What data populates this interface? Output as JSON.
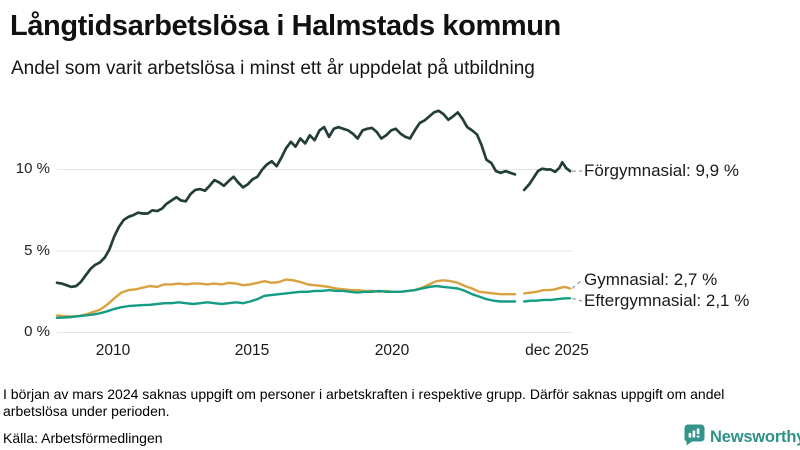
{
  "header": {
    "title": "Långtidsarbetslösa i Halmstads kommun",
    "subtitle": "Andel som varit arbetslösa i minst ett år uppdelat på utbildning"
  },
  "chart_data": {
    "type": "line",
    "title": "Långtidsarbetslösa i Halmstads kommun",
    "subtitle": "Andel som varit arbetslösa i minst ett år uppdelat på utbildning",
    "unit": "%",
    "grid": true,
    "x_domain": [
      2008.0,
      2025.92
    ],
    "x_ticks": [
      {
        "label": "2010",
        "year": 2010
      },
      {
        "label": "2015",
        "year": 2015
      },
      {
        "label": "2020",
        "year": 2020
      },
      {
        "label": "dec 2025",
        "year": 2025.92
      }
    ],
    "y_ticks": [
      {
        "label": "0 %",
        "value": 0
      },
      {
        "label": "5 %",
        "value": 5
      },
      {
        "label": "10 %",
        "value": 10
      }
    ],
    "y_max": 14.3,
    "data_gap": {
      "from": 2024.0,
      "to": 2024.32,
      "reason": "saknas uppgift (mars 2024)"
    },
    "series": [
      {
        "name": "Förgymnasial",
        "end_value": "9,9 %",
        "end_label": "Förgymnasial: 9,9 %",
        "color": "#233e39",
        "segments": [
          [
            [
              2008.0,
              3.05
            ],
            [
              2008.17,
              3.0
            ],
            [
              2008.33,
              2.9
            ],
            [
              2008.5,
              2.8
            ],
            [
              2008.67,
              2.85
            ],
            [
              2008.83,
              3.1
            ],
            [
              2009.0,
              3.5
            ],
            [
              2009.17,
              3.9
            ],
            [
              2009.33,
              4.15
            ],
            [
              2009.5,
              4.3
            ],
            [
              2009.67,
              4.6
            ],
            [
              2009.83,
              5.1
            ],
            [
              2010.0,
              5.9
            ],
            [
              2010.17,
              6.5
            ],
            [
              2010.33,
              6.9
            ],
            [
              2010.5,
              7.1
            ],
            [
              2010.67,
              7.2
            ],
            [
              2010.83,
              7.35
            ],
            [
              2011.0,
              7.3
            ],
            [
              2011.17,
              7.3
            ],
            [
              2011.33,
              7.5
            ],
            [
              2011.5,
              7.45
            ],
            [
              2011.67,
              7.6
            ],
            [
              2011.83,
              7.9
            ],
            [
              2012.0,
              8.1
            ],
            [
              2012.17,
              8.3
            ],
            [
              2012.33,
              8.1
            ],
            [
              2012.5,
              8.05
            ],
            [
              2012.67,
              8.5
            ],
            [
              2012.83,
              8.75
            ],
            [
              2013.0,
              8.8
            ],
            [
              2013.17,
              8.7
            ],
            [
              2013.33,
              9.0
            ],
            [
              2013.5,
              9.35
            ],
            [
              2013.67,
              9.2
            ],
            [
              2013.83,
              9.0
            ],
            [
              2014.0,
              9.3
            ],
            [
              2014.17,
              9.55
            ],
            [
              2014.33,
              9.2
            ],
            [
              2014.5,
              8.9
            ],
            [
              2014.67,
              9.1
            ],
            [
              2014.83,
              9.4
            ],
            [
              2015.0,
              9.55
            ],
            [
              2015.17,
              10.0
            ],
            [
              2015.33,
              10.3
            ],
            [
              2015.5,
              10.5
            ],
            [
              2015.67,
              10.2
            ],
            [
              2015.83,
              10.7
            ],
            [
              2016.0,
              11.3
            ],
            [
              2016.17,
              11.7
            ],
            [
              2016.33,
              11.4
            ],
            [
              2016.5,
              11.9
            ],
            [
              2016.67,
              11.6
            ],
            [
              2016.83,
              12.1
            ],
            [
              2017.0,
              11.8
            ],
            [
              2017.17,
              12.4
            ],
            [
              2017.33,
              12.6
            ],
            [
              2017.5,
              12.0
            ],
            [
              2017.67,
              12.5
            ],
            [
              2017.83,
              12.6
            ],
            [
              2018.0,
              12.5
            ],
            [
              2018.17,
              12.4
            ],
            [
              2018.33,
              12.2
            ],
            [
              2018.5,
              11.9
            ],
            [
              2018.67,
              12.4
            ],
            [
              2018.83,
              12.5
            ],
            [
              2019.0,
              12.55
            ],
            [
              2019.17,
              12.3
            ],
            [
              2019.33,
              11.9
            ],
            [
              2019.5,
              12.1
            ],
            [
              2019.67,
              12.4
            ],
            [
              2019.83,
              12.5
            ],
            [
              2020.0,
              12.2
            ],
            [
              2020.17,
              12.0
            ],
            [
              2020.33,
              11.9
            ],
            [
              2020.5,
              12.4
            ],
            [
              2020.67,
              12.85
            ],
            [
              2020.83,
              13.0
            ],
            [
              2021.0,
              13.25
            ],
            [
              2021.17,
              13.5
            ],
            [
              2021.33,
              13.6
            ],
            [
              2021.5,
              13.4
            ],
            [
              2021.67,
              13.05
            ],
            [
              2021.83,
              13.25
            ],
            [
              2022.0,
              13.5
            ],
            [
              2022.17,
              13.1
            ],
            [
              2022.33,
              12.6
            ],
            [
              2022.5,
              12.4
            ],
            [
              2022.67,
              12.15
            ],
            [
              2022.83,
              11.5
            ],
            [
              2023.0,
              10.6
            ],
            [
              2023.17,
              10.4
            ],
            [
              2023.33,
              9.9
            ],
            [
              2023.5,
              9.8
            ],
            [
              2023.67,
              9.9
            ],
            [
              2023.83,
              9.8
            ],
            [
              2024.0,
              9.7
            ]
          ],
          [
            [
              2024.32,
              8.75
            ],
            [
              2024.5,
              9.1
            ],
            [
              2024.65,
              9.5
            ],
            [
              2024.8,
              9.9
            ],
            [
              2024.95,
              10.05
            ],
            [
              2025.1,
              10.0
            ],
            [
              2025.25,
              10.0
            ],
            [
              2025.4,
              9.85
            ],
            [
              2025.55,
              10.1
            ],
            [
              2025.65,
              10.45
            ],
            [
              2025.78,
              10.1
            ],
            [
              2025.92,
              9.9
            ]
          ]
        ]
      },
      {
        "name": "Gymnasial",
        "end_value": "2,7 %",
        "end_label": "Gymnasial: 2,7 %",
        "color": "#d9a13f",
        "segments": [
          [
            [
              2008.0,
              1.05
            ],
            [
              2008.25,
              1.0
            ],
            [
              2008.5,
              0.98
            ],
            [
              2008.75,
              1.02
            ],
            [
              2009.0,
              1.1
            ],
            [
              2009.25,
              1.25
            ],
            [
              2009.5,
              1.4
            ],
            [
              2009.75,
              1.7
            ],
            [
              2010.0,
              2.1
            ],
            [
              2010.25,
              2.45
            ],
            [
              2010.5,
              2.6
            ],
            [
              2010.75,
              2.65
            ],
            [
              2011.0,
              2.75
            ],
            [
              2011.25,
              2.85
            ],
            [
              2011.5,
              2.8
            ],
            [
              2011.75,
              2.95
            ],
            [
              2012.0,
              2.95
            ],
            [
              2012.25,
              3.0
            ],
            [
              2012.5,
              2.95
            ],
            [
              2012.75,
              3.0
            ],
            [
              2013.0,
              3.0
            ],
            [
              2013.25,
              2.95
            ],
            [
              2013.5,
              3.0
            ],
            [
              2013.75,
              2.95
            ],
            [
              2014.0,
              3.05
            ],
            [
              2014.25,
              3.0
            ],
            [
              2014.5,
              2.9
            ],
            [
              2014.75,
              2.95
            ],
            [
              2015.0,
              3.05
            ],
            [
              2015.25,
              3.15
            ],
            [
              2015.5,
              3.05
            ],
            [
              2015.75,
              3.1
            ],
            [
              2016.0,
              3.25
            ],
            [
              2016.25,
              3.2
            ],
            [
              2016.5,
              3.1
            ],
            [
              2016.75,
              2.95
            ],
            [
              2017.0,
              2.9
            ],
            [
              2017.25,
              2.85
            ],
            [
              2017.5,
              2.8
            ],
            [
              2017.75,
              2.7
            ],
            [
              2018.0,
              2.65
            ],
            [
              2018.25,
              2.6
            ],
            [
              2018.5,
              2.6
            ],
            [
              2018.75,
              2.55
            ],
            [
              2019.0,
              2.55
            ],
            [
              2019.25,
              2.5
            ],
            [
              2019.5,
              2.55
            ],
            [
              2019.75,
              2.5
            ],
            [
              2020.0,
              2.5
            ],
            [
              2020.25,
              2.55
            ],
            [
              2020.5,
              2.6
            ],
            [
              2020.75,
              2.75
            ],
            [
              2021.0,
              2.95
            ],
            [
              2021.25,
              3.15
            ],
            [
              2021.5,
              3.2
            ],
            [
              2021.75,
              3.15
            ],
            [
              2022.0,
              3.05
            ],
            [
              2022.25,
              2.85
            ],
            [
              2022.5,
              2.7
            ],
            [
              2022.75,
              2.5
            ],
            [
              2023.0,
              2.45
            ],
            [
              2023.25,
              2.4
            ],
            [
              2023.5,
              2.35
            ],
            [
              2023.75,
              2.35
            ],
            [
              2024.0,
              2.35
            ]
          ],
          [
            [
              2024.32,
              2.4
            ],
            [
              2024.55,
              2.45
            ],
            [
              2024.75,
              2.5
            ],
            [
              2025.0,
              2.6
            ],
            [
              2025.2,
              2.6
            ],
            [
              2025.4,
              2.65
            ],
            [
              2025.6,
              2.75
            ],
            [
              2025.75,
              2.8
            ],
            [
              2025.92,
              2.7
            ]
          ]
        ]
      },
      {
        "name": "Eftergymnasial",
        "end_value": "2,1 %",
        "end_label": "Eftergymnasial: 2,1 %",
        "color": "#149c85",
        "segments": [
          [
            [
              2008.0,
              0.9
            ],
            [
              2008.25,
              0.92
            ],
            [
              2008.5,
              0.95
            ],
            [
              2008.75,
              1.0
            ],
            [
              2009.0,
              1.05
            ],
            [
              2009.25,
              1.1
            ],
            [
              2009.5,
              1.18
            ],
            [
              2009.75,
              1.3
            ],
            [
              2010.0,
              1.45
            ],
            [
              2010.25,
              1.55
            ],
            [
              2010.5,
              1.62
            ],
            [
              2010.75,
              1.65
            ],
            [
              2011.0,
              1.68
            ],
            [
              2011.25,
              1.7
            ],
            [
              2011.5,
              1.75
            ],
            [
              2011.75,
              1.8
            ],
            [
              2012.0,
              1.8
            ],
            [
              2012.25,
              1.85
            ],
            [
              2012.5,
              1.8
            ],
            [
              2012.75,
              1.75
            ],
            [
              2013.0,
              1.8
            ],
            [
              2013.25,
              1.85
            ],
            [
              2013.5,
              1.8
            ],
            [
              2013.75,
              1.75
            ],
            [
              2014.0,
              1.8
            ],
            [
              2014.25,
              1.85
            ],
            [
              2014.5,
              1.8
            ],
            [
              2014.75,
              1.9
            ],
            [
              2015.0,
              2.05
            ],
            [
              2015.25,
              2.25
            ],
            [
              2015.5,
              2.3
            ],
            [
              2015.75,
              2.35
            ],
            [
              2016.0,
              2.4
            ],
            [
              2016.25,
              2.45
            ],
            [
              2016.5,
              2.5
            ],
            [
              2016.75,
              2.5
            ],
            [
              2017.0,
              2.55
            ],
            [
              2017.25,
              2.55
            ],
            [
              2017.5,
              2.6
            ],
            [
              2017.75,
              2.55
            ],
            [
              2018.0,
              2.55
            ],
            [
              2018.25,
              2.5
            ],
            [
              2018.5,
              2.45
            ],
            [
              2018.75,
              2.5
            ],
            [
              2019.0,
              2.5
            ],
            [
              2019.25,
              2.55
            ],
            [
              2019.5,
              2.5
            ],
            [
              2019.75,
              2.5
            ],
            [
              2020.0,
              2.5
            ],
            [
              2020.25,
              2.55
            ],
            [
              2020.5,
              2.6
            ],
            [
              2020.75,
              2.7
            ],
            [
              2021.0,
              2.8
            ],
            [
              2021.25,
              2.85
            ],
            [
              2021.5,
              2.8
            ],
            [
              2021.75,
              2.75
            ],
            [
              2022.0,
              2.7
            ],
            [
              2022.25,
              2.55
            ],
            [
              2022.5,
              2.35
            ],
            [
              2022.75,
              2.2
            ],
            [
              2023.0,
              2.05
            ],
            [
              2023.25,
              1.95
            ],
            [
              2023.5,
              1.9
            ],
            [
              2023.75,
              1.9
            ],
            [
              2024.0,
              1.9
            ]
          ],
          [
            [
              2024.32,
              1.9
            ],
            [
              2024.55,
              1.95
            ],
            [
              2024.75,
              1.95
            ],
            [
              2025.0,
              2.0
            ],
            [
              2025.25,
              2.0
            ],
            [
              2025.5,
              2.05
            ],
            [
              2025.75,
              2.1
            ],
            [
              2025.92,
              2.1
            ]
          ]
        ]
      }
    ]
  },
  "footer": {
    "note": "I början av mars 2024 saknas uppgift om personer i arbetskraften i respektive grupp. Därför saknas uppgift om andel arbetslösa under perioden.",
    "source": "Källa: Arbetsförmedlingen",
    "brand": "Newsworthy"
  }
}
